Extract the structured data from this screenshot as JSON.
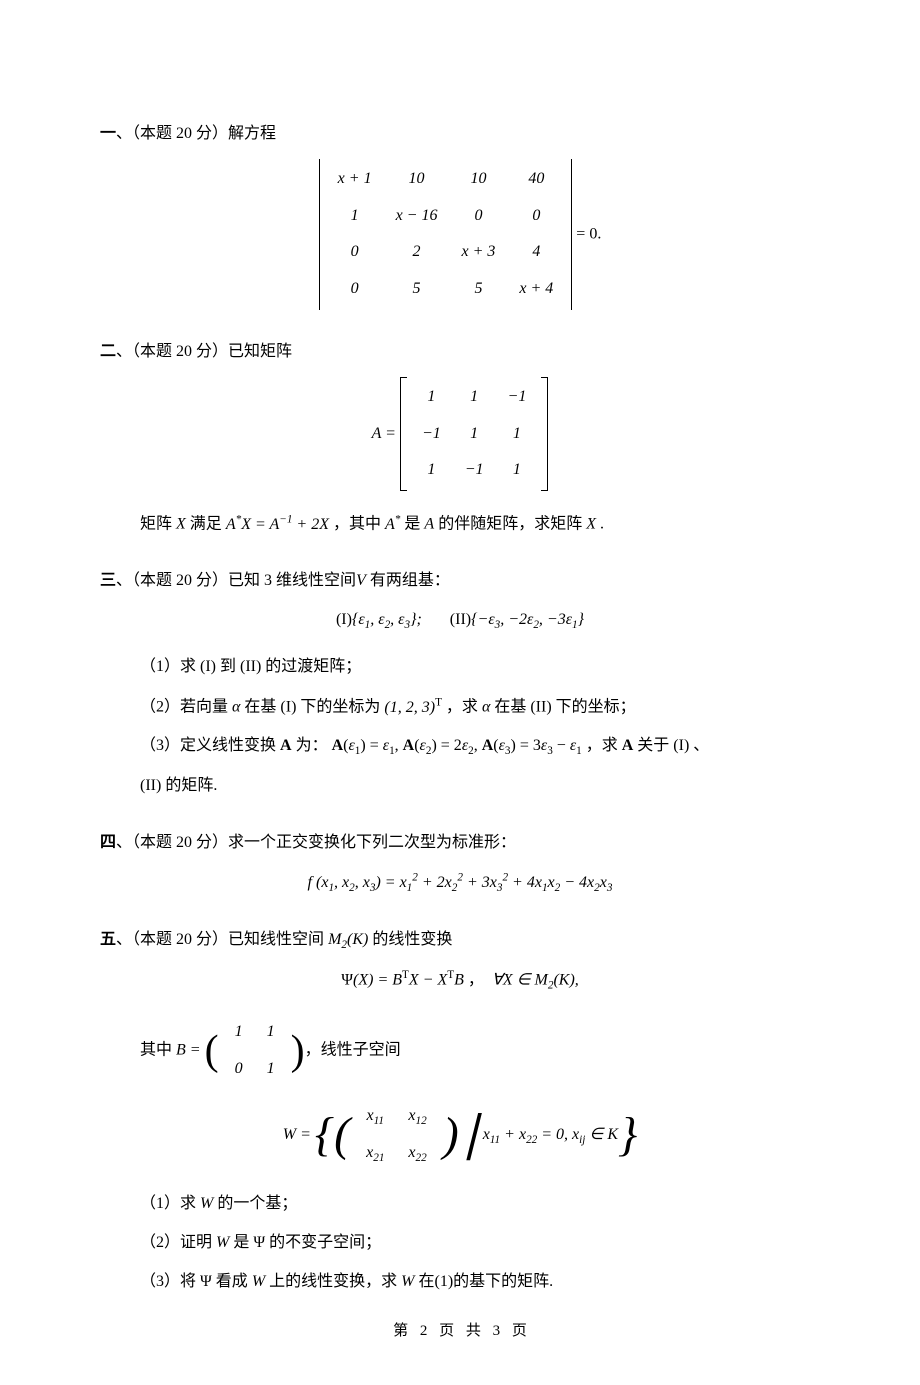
{
  "problems": {
    "p1": {
      "num": "一",
      "score": "（本题 20 分）",
      "title": "解方程",
      "matrix": [
        [
          "x + 1",
          "10",
          "10",
          "40"
        ],
        [
          "1",
          "x − 16",
          "0",
          "0"
        ],
        [
          "0",
          "2",
          "x + 3",
          "4"
        ],
        [
          "0",
          "5",
          "5",
          "x + 4"
        ]
      ],
      "rhs": " = 0."
    },
    "p2": {
      "num": "二",
      "score": "（本题 20 分）",
      "title": "已知矩阵",
      "prefix": "A = ",
      "matrix": [
        [
          "1",
          "1",
          "−1"
        ],
        [
          "−1",
          "1",
          "1"
        ],
        [
          "1",
          "−1",
          "1"
        ]
      ],
      "line2_a": "矩阵 ",
      "line2_b": "X",
      "line2_c": " 满足 ",
      "line2_eq": "A*X = A⁻¹ + 2X",
      "line2_mid": " ，其中 ",
      "line2_astar": "A*",
      "line2_is": " 是 ",
      "line2_A": "A",
      "line2_adj": " 的伴随矩阵，求矩阵 ",
      "line2_X2": "X",
      "line2_end": " ."
    },
    "p3": {
      "num": "三",
      "score": "（本题 20 分）",
      "title_a": "已知 3 维线性空间",
      "title_V": "V",
      "title_b": " 有两组基：",
      "bases_I_lbl": "(I)",
      "bases_I": "{ε₁, ε₂, ε₃};",
      "bases_II_lbl": "(II)",
      "bases_II": "{−ε₃, −2ε₂, −3ε₁}",
      "sub1": "（1）求 (I) 到 (II) 的过渡矩阵；",
      "sub2_a": "（2）若向量 ",
      "sub2_alpha": "α",
      "sub2_b": " 在基 (I) 下的坐标为 ",
      "sub2_coord": "(1, 2, 3)ᵀ",
      "sub2_c": " ，求 ",
      "sub2_alpha2": "α",
      "sub2_d": " 在基 (II) 下的坐标；",
      "sub3_a": "（3）定义线性变换 ",
      "sub3_A": "A",
      "sub3_b": " 为：  ",
      "sub3_eq": "A(ε₁) = ε₁, A(ε₂) = 2ε₂, A(ε₃) = 3ε₃ − ε₁",
      "sub3_c": " ，求 ",
      "sub3_A2": "A",
      "sub3_d": " 关于 (I) 、",
      "sub3_e": "(II) 的矩阵."
    },
    "p4": {
      "num": "四",
      "score": "（本题 20 分）",
      "title": "求一个正交变换化下列二次型为标准形：",
      "eq_lhs": "f (x₁, x₂, x₃) = ",
      "eq_rhs": "x₁² + 2x₂² + 3x₃² + 4x₁x₂ − 4x₂x₃"
    },
    "p5": {
      "num": "五",
      "score": "（本题 20 分）",
      "title_a": "已知线性空间 ",
      "title_M": "M₂(K)",
      "title_b": " 的线性变换",
      "eq1_lhs": "Ψ(X) = ",
      "eq1_rhs": "BᵀX − XᵀB",
      "eq1_cond": " ，  ∀X ∈ M₂(K),",
      "where_a": "其中 ",
      "where_B": "B = ",
      "Bmatrix": [
        [
          "1",
          "1"
        ],
        [
          "0",
          "1"
        ]
      ],
      "where_b": "，线性子空间",
      "W_lhs": "W  = ",
      "Wmatrix": [
        [
          "x₁₁",
          "x₁₂"
        ],
        [
          "x₂₁",
          "x₂₂"
        ]
      ],
      "W_cond": "x₁₁ + x₂₂ = 0, xᵢⱼ ∈ K",
      "sub1_a": "（1）求 ",
      "sub1_W": "W",
      "sub1_b": " 的一个基；",
      "sub2_a": "（2）证明 ",
      "sub2_W": "W",
      "sub2_b": " 是 Ψ 的不变子空间；",
      "sub3_a": "（3）将 Ψ 看成 ",
      "sub3_W": "W",
      "sub3_b": " 上的线性变换，求 ",
      "sub3_W2": "W",
      "sub3_c": " 在(1)的基下的矩阵."
    }
  },
  "footer": {
    "a": "第",
    "cur": "2",
    "b": "页",
    "c": "共",
    "tot": "3",
    "d": "页"
  },
  "style": {
    "page_bg": "#ffffff",
    "text_color": "#000000",
    "font_size_body": 16,
    "font_size_footer": 15
  }
}
